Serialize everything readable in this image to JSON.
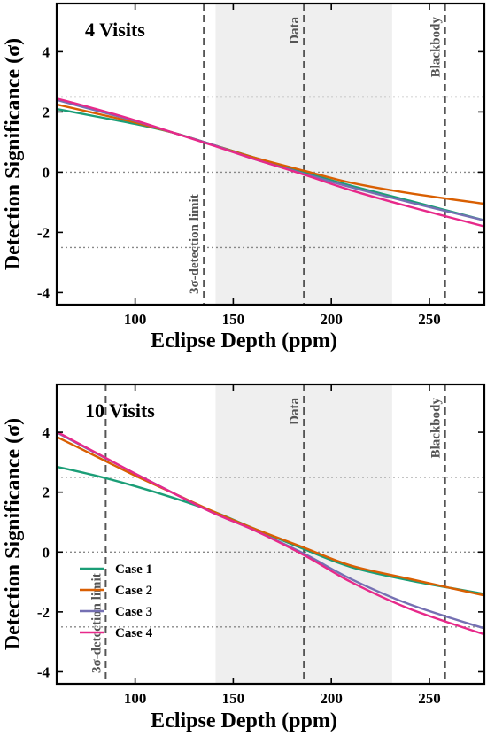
{
  "chart_data": [
    {
      "type": "line",
      "title": "4 Visits",
      "xlabel": "Eclipse Depth (ppm)",
      "ylabel": "Detection Significance (σ)",
      "xlim": [
        60,
        278
      ],
      "ylim": [
        -4.4,
        5.6
      ],
      "xticks": [
        "100",
        "150",
        "200",
        "250"
      ],
      "xtick_values": [
        100,
        150,
        200,
        250
      ],
      "yticks": [
        "4",
        "2",
        "0",
        "-2",
        "-4"
      ],
      "ytick_values": [
        4,
        2,
        0,
        -2,
        -4
      ],
      "shaded_region": [
        141,
        231
      ],
      "hlines": [
        2.5,
        0,
        -2.5
      ],
      "vlines": [
        {
          "x": 135,
          "label": "3σ-detection limit"
        },
        {
          "x": 186,
          "label": "Data"
        },
        {
          "x": 258,
          "label": "Blackbody"
        }
      ],
      "legend": false,
      "series": [
        {
          "name": "Case 1",
          "color": "#1b9e77",
          "x": [
            60,
            80,
            100,
            120,
            140,
            160,
            186,
            210,
            240,
            278
          ],
          "y": [
            2.1,
            1.85,
            1.6,
            1.3,
            0.9,
            0.5,
            0.0,
            -0.45,
            -0.95,
            -1.6
          ]
        },
        {
          "name": "Case 2",
          "color": "#d95f02",
          "x": [
            60,
            80,
            100,
            120,
            140,
            160,
            186,
            210,
            240,
            278
          ],
          "y": [
            2.25,
            1.95,
            1.65,
            1.3,
            0.9,
            0.5,
            0.05,
            -0.35,
            -0.7,
            -1.05
          ]
        },
        {
          "name": "Case 3",
          "color": "#7570b3",
          "x": [
            60,
            80,
            100,
            120,
            140,
            160,
            186,
            210,
            240,
            278
          ],
          "y": [
            2.4,
            2.05,
            1.7,
            1.3,
            0.9,
            0.45,
            -0.05,
            -0.5,
            -1.0,
            -1.6
          ]
        },
        {
          "name": "Case 4",
          "color": "#e7298a",
          "x": [
            60,
            80,
            100,
            120,
            140,
            160,
            186,
            210,
            240,
            278
          ],
          "y": [
            2.45,
            2.1,
            1.72,
            1.3,
            0.88,
            0.45,
            -0.08,
            -0.6,
            -1.15,
            -1.8
          ]
        }
      ]
    },
    {
      "type": "line",
      "title": "10 Visits",
      "xlabel": "Eclipse Depth (ppm)",
      "ylabel": "Detection Significance (σ)",
      "xlim": [
        60,
        278
      ],
      "ylim": [
        -4.4,
        5.6
      ],
      "xticks": [
        "100",
        "150",
        "200",
        "250"
      ],
      "xtick_values": [
        100,
        150,
        200,
        250
      ],
      "yticks": [
        "4",
        "2",
        "0",
        "-2",
        "-4"
      ],
      "ytick_values": [
        4,
        2,
        0,
        -2,
        -4
      ],
      "shaded_region": [
        141,
        231
      ],
      "hlines": [
        2.5,
        0,
        -2.5
      ],
      "vlines": [
        {
          "x": 85,
          "label": "3σ-detection limit"
        },
        {
          "x": 186,
          "label": "Data"
        },
        {
          "x": 258,
          "label": "Blackbody"
        }
      ],
      "legend": true,
      "series": [
        {
          "name": "Case 1",
          "color": "#1b9e77",
          "x": [
            60,
            80,
            100,
            120,
            140,
            160,
            186,
            210,
            240,
            278
          ],
          "y": [
            2.85,
            2.55,
            2.2,
            1.8,
            1.35,
            0.8,
            0.1,
            -0.5,
            -0.95,
            -1.4
          ]
        },
        {
          "name": "Case 2",
          "color": "#d95f02",
          "x": [
            60,
            80,
            100,
            120,
            140,
            160,
            186,
            210,
            240,
            278
          ],
          "y": [
            3.85,
            3.2,
            2.55,
            1.95,
            1.35,
            0.8,
            0.15,
            -0.45,
            -0.9,
            -1.45
          ]
        },
        {
          "name": "Case 3",
          "color": "#7570b3",
          "x": [
            60,
            80,
            100,
            120,
            140,
            160,
            186,
            210,
            240,
            278
          ],
          "y": [
            4.0,
            3.3,
            2.62,
            1.95,
            1.3,
            0.75,
            -0.05,
            -0.9,
            -1.75,
            -2.55
          ]
        },
        {
          "name": "Case 4",
          "color": "#e7298a",
          "x": [
            60,
            80,
            100,
            120,
            140,
            160,
            186,
            210,
            240,
            278
          ],
          "y": [
            4.02,
            3.32,
            2.62,
            1.95,
            1.3,
            0.75,
            -0.1,
            -1.0,
            -1.9,
            -2.75
          ]
        }
      ]
    }
  ]
}
